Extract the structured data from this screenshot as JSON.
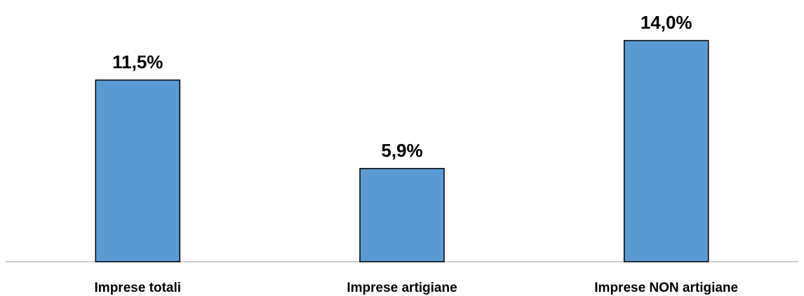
{
  "chart_data": {
    "type": "bar",
    "categories": [
      "Imprese totali",
      "Imprese artigiane",
      "Imprese NON artigiane"
    ],
    "values": [
      11.5,
      5.9,
      14.0
    ],
    "data_labels": [
      "11,5%",
      "5,9%",
      "14,0%"
    ],
    "title": "",
    "xlabel": "",
    "ylabel": "",
    "ylim": [
      0,
      14.0
    ],
    "grid": false,
    "legend": "none",
    "bar_color": "#5b9bd5",
    "bar_edge_color": "#000000",
    "axis_color": "#bfbfbf"
  }
}
